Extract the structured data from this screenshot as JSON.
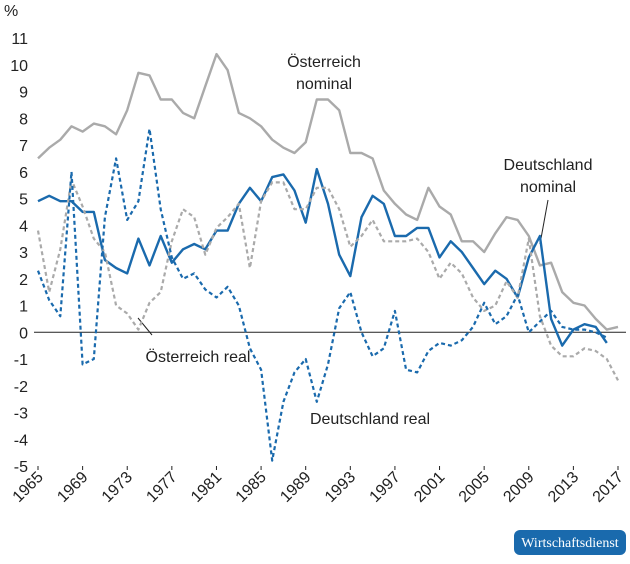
{
  "chart_data": {
    "type": "line",
    "y_unit": "%",
    "x": [
      1965,
      1966,
      1967,
      1968,
      1969,
      1970,
      1971,
      1972,
      1973,
      1974,
      1975,
      1976,
      1977,
      1978,
      1979,
      1980,
      1981,
      1982,
      1983,
      1984,
      1985,
      1986,
      1987,
      1988,
      1989,
      1990,
      1991,
      1992,
      1993,
      1994,
      1995,
      1996,
      1997,
      1998,
      1999,
      2000,
      2001,
      2002,
      2003,
      2004,
      2005,
      2006,
      2007,
      2008,
      2009,
      2010,
      2011,
      2012,
      2013,
      2014,
      2015,
      2016,
      2017
    ],
    "xlim": [
      1965,
      2017
    ],
    "xticks": [
      1965,
      1969,
      1973,
      1977,
      1981,
      1985,
      1989,
      1993,
      1997,
      2001,
      2005,
      2009,
      2013,
      2017
    ],
    "ylim": [
      -5,
      11
    ],
    "yticks": [
      -5,
      -4,
      -3,
      -2,
      -1,
      0,
      1,
      2,
      3,
      4,
      5,
      6,
      7,
      8,
      9,
      10,
      11
    ],
    "series": [
      {
        "color": "#aaaaaa",
        "linestyle": "solid",
        "values": [
          6.5,
          6.9,
          7.2,
          7.7,
          7.5,
          7.8,
          7.7,
          7.4,
          8.3,
          9.7,
          9.6,
          8.7,
          8.7,
          8.2,
          8.0,
          9.2,
          10.4,
          9.8,
          8.2,
          8.0,
          7.7,
          7.2,
          6.9,
          6.7,
          7.1,
          8.7,
          8.7,
          8.3,
          6.7,
          6.7,
          6.5,
          5.3,
          4.8,
          4.4,
          4.2,
          5.4,
          4.7,
          4.4,
          3.4,
          3.4,
          3.0,
          3.7,
          4.3,
          4.2,
          3.6,
          2.5,
          2.6,
          1.5,
          1.1,
          1.0,
          0.5,
          0.1,
          0.2
        ]
      },
      {
        "color": "#1a6aad",
        "linestyle": "solid",
        "values": [
          4.9,
          5.1,
          4.9,
          4.9,
          4.5,
          4.5,
          2.7,
          2.4,
          2.2,
          3.5,
          2.5,
          3.6,
          2.6,
          3.1,
          3.3,
          3.1,
          3.8,
          3.8,
          4.8,
          5.4,
          4.9,
          5.8,
          5.9,
          5.3,
          4.1,
          6.1,
          4.8,
          2.9,
          2.1,
          4.3,
          5.1,
          4.8,
          3.6,
          3.6,
          3.9,
          3.9,
          2.8,
          3.4,
          3.0,
          2.4,
          1.8,
          2.3,
          2.0,
          1.3,
          2.8,
          3.6,
          0.5,
          -0.5,
          0.1,
          0.3,
          0.2,
          -0.4,
          null
        ]
      },
      {
        "color": "#aaaaaa",
        "linestyle": "dashed",
        "values": [
          3.8,
          1.5,
          3.1,
          5.7,
          4.7,
          3.5,
          3.0,
          1.0,
          0.7,
          0.1,
          1.1,
          1.5,
          3.4,
          4.6,
          4.3,
          2.9,
          3.9,
          4.3,
          4.8,
          2.4,
          4.9,
          5.6,
          5.6,
          4.6,
          4.6,
          5.4,
          5.4,
          4.6,
          3.2,
          3.6,
          4.2,
          3.4,
          3.4,
          3.4,
          3.5,
          3.0,
          2.0,
          2.6,
          2.2,
          1.3,
          0.8,
          1.0,
          1.9,
          1.3,
          3.5,
          0.6,
          -0.5,
          -0.9,
          -0.9,
          -0.6,
          -0.7,
          -1.0,
          -1.8
        ]
      },
      {
        "color": "#1a6aad",
        "linestyle": "dashed",
        "values": [
          2.3,
          1.2,
          0.6,
          6.0,
          -1.2,
          -1.0,
          4.3,
          6.5,
          4.2,
          4.9,
          7.6,
          4.6,
          2.8,
          2.0,
          2.2,
          1.6,
          1.3,
          1.7,
          1.0,
          -0.6,
          -1.4,
          -4.8,
          -2.6,
          -1.5,
          -1.0,
          -2.6,
          -1.2,
          0.9,
          1.5,
          0.0,
          -0.9,
          -0.6,
          0.8,
          -1.4,
          -1.5,
          -0.7,
          -0.4,
          -0.5,
          -0.3,
          0.2,
          1.1,
          0.3,
          0.6,
          1.4,
          0.0,
          0.4,
          0.8,
          0.2,
          0.1,
          0.1,
          0.0,
          -0.2,
          null
        ]
      }
    ],
    "annotations": [
      {
        "lines": [
          "Österreich",
          "nominal"
        ]
      },
      {
        "lines": [
          "Deutschland",
          "nominal"
        ]
      },
      {
        "lines": [
          "Österreich real"
        ]
      },
      {
        "lines": [
          "Deutschland real"
        ]
      }
    ],
    "source": "Wirtschaftsdienst"
  }
}
